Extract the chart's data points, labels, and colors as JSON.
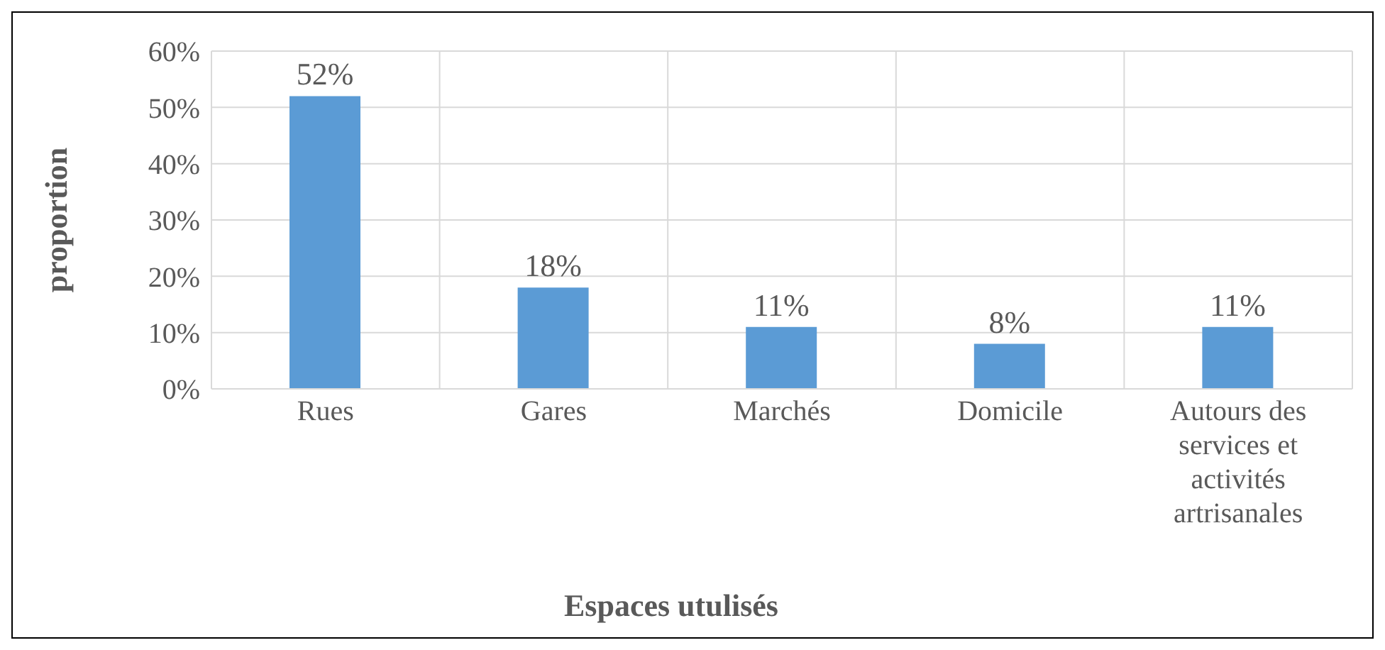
{
  "chart_data": {
    "type": "bar",
    "xlabel": "Espaces utulisés",
    "ylabel": "proportion",
    "categories": [
      "Rues",
      "Gares",
      "Marchés",
      "Domicile",
      "Autours des services et activités artrisanales"
    ],
    "values": [
      52,
      18,
      11,
      8,
      11
    ],
    "value_labels": [
      "52%",
      "18%",
      "11%",
      "8%",
      "11%"
    ],
    "color": "#5b9bd5",
    "ylim": [
      0,
      60
    ],
    "yticks": [
      {
        "value": 0,
        "label": "0%"
      },
      {
        "value": 10,
        "label": "10%"
      },
      {
        "value": 20,
        "label": "20%"
      },
      {
        "value": 30,
        "label": "30%"
      },
      {
        "value": 40,
        "label": "40%"
      },
      {
        "value": 50,
        "label": "50%"
      },
      {
        "value": 60,
        "label": "60%"
      }
    ],
    "grid": true
  }
}
